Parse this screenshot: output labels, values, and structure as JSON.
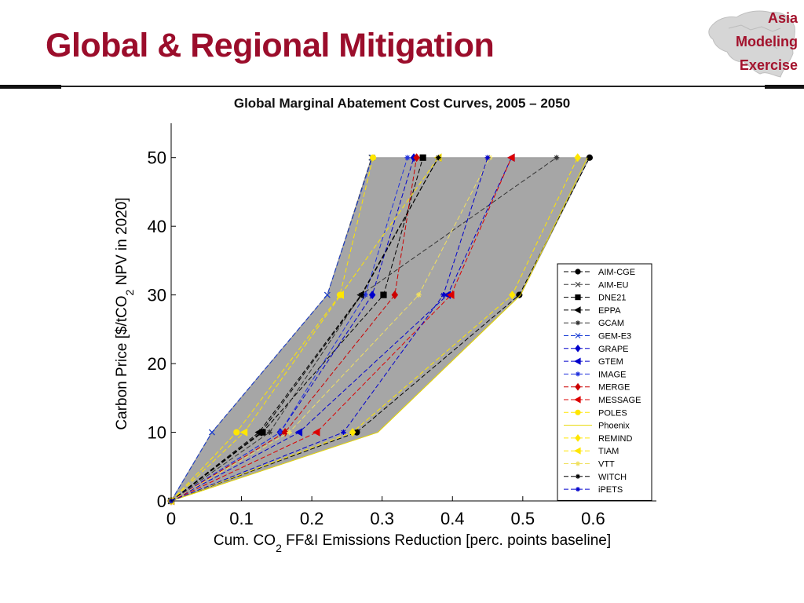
{
  "slide": {
    "title": "Global & Regional Mitigation",
    "logo_lines": [
      "Asia",
      "Modeling",
      "Exercise"
    ]
  },
  "chart_data": {
    "type": "line",
    "title": "Global Marginal Abatement Cost Curves, 2005 – 2050",
    "xlabel": "Cum. CO2 FF&I Emissions Reduction [perc. points baseline]",
    "xlabel_parts": [
      "Cum. CO",
      "2",
      " FF&I Emissions Reduction [perc. points baseline]"
    ],
    "ylabel": "Carbon Price [$/tCO2 NPV in 2020]",
    "ylabel_parts": [
      "Carbon Price [$/tCO",
      "2",
      " NPV in 2020]"
    ],
    "xlim": [
      0,
      0.69
    ],
    "ylim": [
      0,
      55
    ],
    "xticks": [
      0,
      0.1,
      0.2,
      0.3,
      0.4,
      0.5,
      0.6
    ],
    "xtick_labels": [
      "0",
      "0.1",
      "0.2",
      "0.3",
      "0.4",
      "0.5",
      "0.6"
    ],
    "yticks": [
      0,
      10,
      20,
      30,
      40,
      50
    ],
    "ytick_labels": [
      "0",
      "10",
      "20",
      "30",
      "40",
      "50"
    ],
    "grid": false,
    "legend_position": "right",
    "envelope_color": "#a6a6a6",
    "envelope": [
      [
        0,
        0
      ],
      [
        0.058,
        10
      ],
      [
        0.222,
        30
      ],
      [
        0.285,
        50
      ],
      [
        0.595,
        50
      ],
      [
        0.497,
        30
      ],
      [
        0.294,
        10
      ],
      [
        0,
        0
      ]
    ],
    "series": [
      {
        "name": "AIM-CGE",
        "color": "#000000",
        "marker": "circle",
        "points": [
          [
            0,
            0
          ],
          [
            0.264,
            10
          ],
          [
            0.495,
            30
          ],
          [
            0.595,
            50
          ]
        ]
      },
      {
        "name": "AIM-EU",
        "color": "#444444",
        "marker": "x",
        "points": [
          [
            0,
            0
          ],
          [
            0.058,
            10
          ],
          [
            0.222,
            30
          ],
          [
            0.285,
            50
          ]
        ]
      },
      {
        "name": "DNE21",
        "color": "#000000",
        "marker": "square",
        "points": [
          [
            0,
            0
          ],
          [
            0.13,
            10
          ],
          [
            0.302,
            30
          ],
          [
            0.358,
            50
          ]
        ]
      },
      {
        "name": "EPPA",
        "color": "#000000",
        "marker": "triangle-left",
        "points": [
          [
            0,
            0
          ],
          [
            0.125,
            10
          ],
          [
            0.27,
            30
          ],
          [
            0.38,
            50
          ]
        ]
      },
      {
        "name": "GCAM",
        "color": "#333333",
        "marker": "star",
        "points": [
          [
            0,
            0
          ],
          [
            0.14,
            10
          ],
          [
            0.27,
            30
          ],
          [
            0.548,
            50
          ]
        ]
      },
      {
        "name": "GEM-E3",
        "color": "#1a3fd6",
        "marker": "x",
        "points": [
          [
            0,
            0
          ],
          [
            0.058,
            10
          ],
          [
            0.222,
            30
          ],
          [
            0.286,
            50
          ]
        ]
      },
      {
        "name": "GRAPE",
        "color": "#0000cc",
        "marker": "diamond",
        "points": [
          [
            0,
            0
          ],
          [
            0.155,
            10
          ],
          [
            0.286,
            30
          ],
          [
            0.345,
            50
          ]
        ]
      },
      {
        "name": "GTEM",
        "color": "#0000cc",
        "marker": "triangle-left",
        "points": [
          [
            0,
            0
          ],
          [
            0.182,
            10
          ],
          [
            0.393,
            30
          ],
          [
            0.484,
            50
          ]
        ]
      },
      {
        "name": "IMAGE",
        "color": "#2233dd",
        "marker": "star",
        "points": [
          [
            0,
            0
          ],
          [
            0.155,
            10
          ],
          [
            0.276,
            30
          ],
          [
            0.336,
            50
          ]
        ]
      },
      {
        "name": "MERGE",
        "color": "#cc0000",
        "marker": "diamond",
        "points": [
          [
            0,
            0
          ],
          [
            0.162,
            10
          ],
          [
            0.318,
            30
          ],
          [
            0.349,
            50
          ]
        ]
      },
      {
        "name": "MESSAGE",
        "color": "#dd0000",
        "marker": "triangle-left",
        "points": [
          [
            0,
            0
          ],
          [
            0.207,
            10
          ],
          [
            0.398,
            30
          ],
          [
            0.484,
            50
          ]
        ]
      },
      {
        "name": "POLES",
        "color": "#ffe600",
        "marker": "circle",
        "points": [
          [
            0,
            0
          ],
          [
            0.093,
            10
          ],
          [
            0.24,
            30
          ],
          [
            0.287,
            50
          ]
        ]
      },
      {
        "name": "Phoenix",
        "color": "#e8d800",
        "marker": "none",
        "points": [
          [
            0,
            0
          ],
          [
            0.294,
            10
          ],
          [
            0.497,
            30
          ],
          [
            0.592,
            50
          ]
        ]
      },
      {
        "name": "REMIND",
        "color": "#ffe600",
        "marker": "diamond",
        "points": [
          [
            0,
            0
          ],
          [
            0.258,
            10
          ],
          [
            0.485,
            30
          ],
          [
            0.578,
            50
          ]
        ]
      },
      {
        "name": "TIAM",
        "color": "#ffe600",
        "marker": "triangle-left",
        "points": [
          [
            0,
            0
          ],
          [
            0.104,
            10
          ],
          [
            0.241,
            30
          ],
          [
            0.38,
            50
          ]
        ]
      },
      {
        "name": "VTT",
        "color": "#f0e060",
        "marker": "star",
        "points": [
          [
            0,
            0
          ],
          [
            0.168,
            10
          ],
          [
            0.352,
            30
          ],
          [
            0.453,
            50
          ]
        ]
      },
      {
        "name": "WITCH",
        "color": "#000000",
        "marker": "star",
        "points": [
          [
            0,
            0
          ],
          [
            0.128,
            10
          ],
          [
            0.271,
            30
          ],
          [
            0.38,
            50
          ]
        ]
      },
      {
        "name": "iPETS",
        "color": "#0000cc",
        "marker": "star",
        "points": [
          [
            0,
            0
          ],
          [
            0.245,
            10
          ],
          [
            0.387,
            30
          ],
          [
            0.45,
            50
          ]
        ]
      }
    ]
  }
}
